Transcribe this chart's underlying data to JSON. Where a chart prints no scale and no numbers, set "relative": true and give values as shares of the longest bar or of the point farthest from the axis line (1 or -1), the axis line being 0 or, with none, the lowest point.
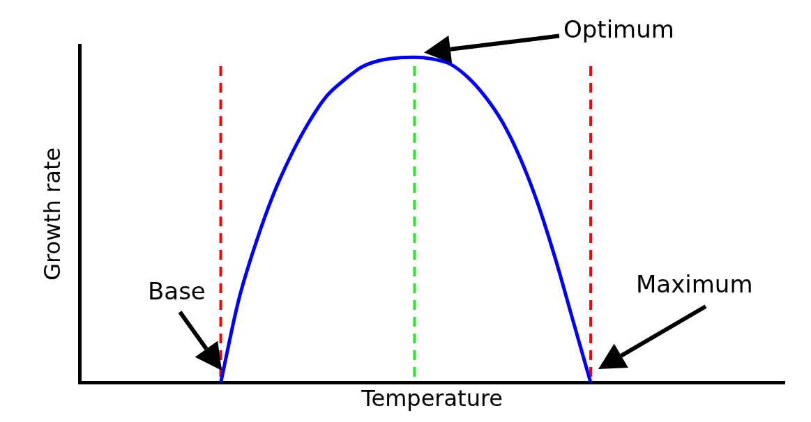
{
  "chart_data": {
    "type": "line",
    "relative": true,
    "xlabel": "Temperature",
    "ylabel": "Growth rate",
    "categories": [
      null,
      null,
      null,
      null,
      null,
      null,
      null,
      null,
      null,
      null,
      null,
      null,
      null,
      null,
      null,
      null,
      null,
      null,
      null,
      null,
      null,
      null,
      null,
      null,
      null,
      null,
      null,
      null,
      null,
      null,
      null,
      null,
      null,
      null,
      null,
      null,
      null,
      null,
      null,
      null,
      null
    ],
    "series": [
      {
        "color": "#0000ff",
        "values": [
          null,
          null,
          null,
          null,
          null,
          null,
          null,
          null,
          0,
          0.25,
          0.43,
          0.58,
          0.7,
          0.8,
          0.88,
          0.93,
          0.97,
          0.99,
          0.998,
          1,
          0.995,
          0.98,
          0.94,
          0.88,
          0.8,
          0.69,
          0.55,
          0.38,
          0.19,
          0,
          null,
          null,
          null,
          null,
          null,
          null,
          null,
          null,
          null,
          null,
          null
        ]
      }
    ],
    "annotations": [
      "Base",
      "Optimum",
      "Maximum"
    ],
    "grid": false,
    "legend": false,
    "marker": "none",
    "line_style": "solid",
    "tick_labels": false
  }
}
